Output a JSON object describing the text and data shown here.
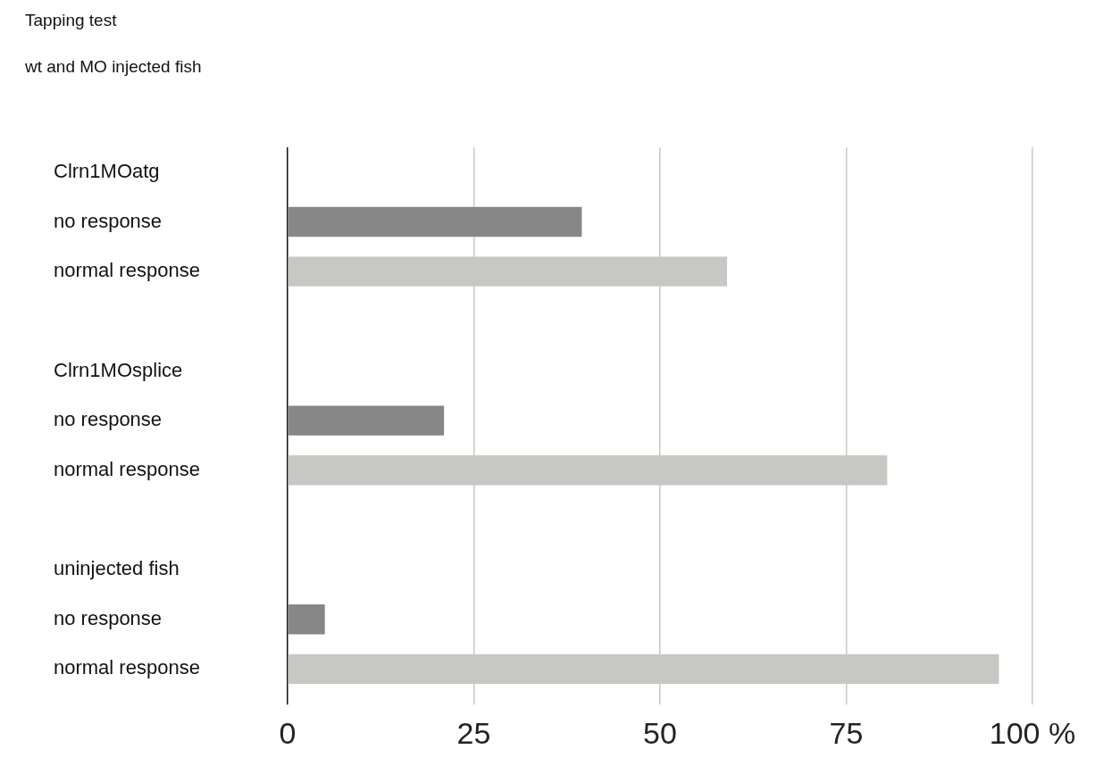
{
  "chart_data": {
    "type": "bar",
    "orientation": "horizontal",
    "title": "Tapping test",
    "subtitle": "wt and MO injected fish",
    "categories": [
      "Clrn1MOatg",
      "no response",
      "normal response",
      null,
      "Clrn1MOsplice",
      "no response",
      "normal response",
      null,
      "uninjected fish",
      "no response",
      "normal response"
    ],
    "values": [
      null,
      39.5,
      59,
      null,
      null,
      21,
      80.5,
      null,
      null,
      5,
      95.5
    ],
    "colors": [
      "#868786",
      "#868786",
      "#c7c8c3",
      "#868786",
      "#868786",
      "#868786",
      "#c7c8c3",
      "#868786",
      "#868786",
      "#868786",
      "#c7c8c3"
    ],
    "xlim": [
      0,
      100
    ],
    "xticks": [
      0,
      25,
      50,
      75,
      {
        "value": 100,
        "label": "100 %"
      }
    ],
    "grid": "x",
    "legend": false
  }
}
